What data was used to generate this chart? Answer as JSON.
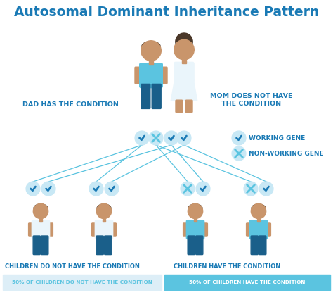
{
  "title": "Autosomal Dominant Inheritance Pattern",
  "title_color": "#1a7ab5",
  "background_color": "#ffffff",
  "dad_label": "DAD HAS THE CONDITION",
  "mom_label": "MOM DOES NOT HAVE\nTHE CONDITION",
  "legend_working": "WORKING GENE",
  "legend_nonworking": "NON-WORKING GENE",
  "child_label_left": "CHILDREN DO NOT HAVE THE CONDITION",
  "child_label_right": "CHILDREN HAVE THE CONDITION",
  "footer_left": "50% OF CHILDREN DO NOT HAVE THE CONDITION",
  "footer_right": "50% OF CHILDREN HAVE THE CONDITION",
  "label_color": "#1a7ab5",
  "check_color": "#1a7ab5",
  "cross_color": "#5bc4e0",
  "check_bg": "#c8e8f5",
  "cross_bg": "#c8e8f5",
  "dad_shirt_color": "#5bc4e0",
  "dad_pants_color": "#1a5f8a",
  "mom_shirt_color": "#eaf5fb",
  "mom_skirt_color": "#eaf5fb",
  "skin_color": "#c9956b",
  "hair_dark": "#4a3728",
  "child_healthy_shirt": "#eaf5fb",
  "child_sick_shirt": "#5bc4e0",
  "child_pants_color": "#1a5f8a",
  "line_color": "#5bc4e0",
  "footer_left_bg": "#ddeef7",
  "footer_right_bg": "#5bc4e0",
  "footer_text_left_color": "#5bc4e0",
  "footer_text_right_color": "#ffffff",
  "separator_color": "#cccccc"
}
